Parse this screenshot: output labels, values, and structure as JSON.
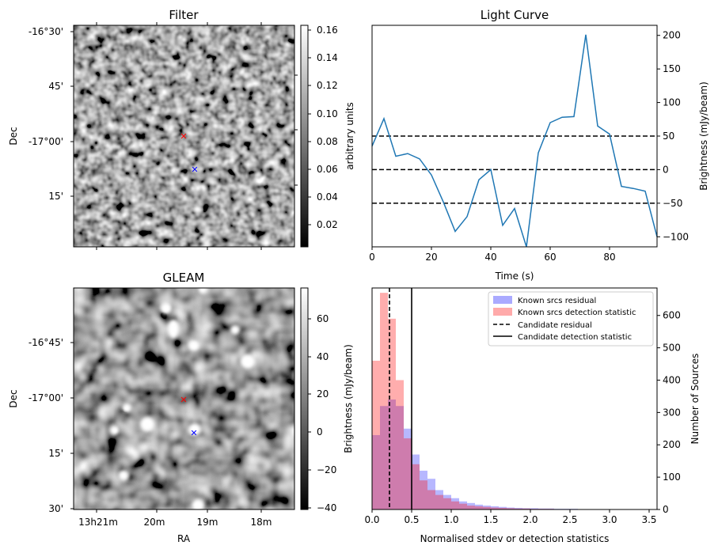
{
  "colors": {
    "line": "#1f77b4",
    "known_residual": "#aaaaff",
    "known_detection": "#ffaaaa",
    "overlap": "#c77bb5",
    "candidate_red_marker": "#ff0000",
    "candidate_blue_marker": "#0000ff"
  },
  "chart_data": [
    {
      "type": "heatmap",
      "panel": "filter",
      "title": "Filter",
      "xlabel": "",
      "ylabel": "Dec",
      "yticklabels": [
        "-16°30'",
        "45'",
        "-17°00'",
        "15'"
      ],
      "colorbar": {
        "label": "arbitrary units",
        "range": [
          0.005,
          0.163
        ],
        "ticks": [
          "0.02",
          "0.04",
          "0.06",
          "0.08",
          "0.10",
          "0.12",
          "0.14",
          "0.16"
        ]
      },
      "markers": [
        {
          "symbol": "x",
          "color": "red"
        },
        {
          "symbol": "x",
          "color": "blue"
        }
      ]
    },
    {
      "type": "line",
      "panel": "light-curve",
      "title": "Light Curve",
      "xlabel": "Time (s)",
      "ylabel": "Brightness (mJy/beam)",
      "xlim": [
        0,
        96
      ],
      "ylim": [
        -115,
        215
      ],
      "xticks": [
        0,
        20,
        40,
        60,
        80
      ],
      "yticks": [
        -100,
        -50,
        0,
        50,
        100,
        150,
        200
      ],
      "x": [
        0,
        4,
        8,
        12,
        16,
        20,
        24,
        28,
        32,
        36,
        40,
        44,
        48,
        52,
        56,
        60,
        64,
        68,
        72,
        76,
        80,
        84,
        88,
        92,
        96
      ],
      "y": [
        35,
        76,
        20,
        24,
        16,
        -8,
        -48,
        -92,
        -70,
        -15,
        0,
        -83,
        -58,
        -115,
        25,
        70,
        78,
        79,
        201,
        65,
        53,
        -25,
        -28,
        -32,
        -100
      ],
      "hlines": [
        {
          "y": 50,
          "style": "dashed"
        },
        {
          "y": 0,
          "style": "dashed"
        },
        {
          "y": -50,
          "style": "dashed"
        }
      ]
    },
    {
      "type": "heatmap",
      "panel": "gleam",
      "title": "GLEAM",
      "xlabel": "RA",
      "ylabel": "Dec",
      "yticklabels": [
        "-16°45'",
        "-17°00'",
        "15'",
        "30'"
      ],
      "xticklabels": [
        "13h21m",
        "20m",
        "19m",
        "18m"
      ],
      "colorbar": {
        "label": "Brightness (mJy/beam)",
        "range": [
          -42,
          75
        ],
        "ticks": [
          "−40",
          "−20",
          "0",
          "20",
          "40",
          "60"
        ]
      },
      "markers": [
        {
          "symbol": "x",
          "color": "red"
        },
        {
          "symbol": "x",
          "color": "blue"
        }
      ]
    },
    {
      "type": "bar",
      "panel": "histogram",
      "xlabel": "Normalised stdev or detection statistics",
      "ylabel": "Number of Sources",
      "xlim": [
        0,
        3.6
      ],
      "ylim": [
        0,
        685
      ],
      "xticks": [
        "0.0",
        "0.5",
        "1.0",
        "1.5",
        "2.0",
        "2.5",
        "3.0",
        "3.5"
      ],
      "yticks": [
        "0",
        "100",
        "200",
        "300",
        "400",
        "500",
        "600"
      ],
      "bin_width": 0.1,
      "bin_start": 0.0,
      "series": [
        {
          "name": "Known srcs residual",
          "values": [
            230,
            320,
            340,
            320,
            250,
            170,
            120,
            95,
            60,
            45,
            35,
            25,
            20,
            15,
            12,
            10,
            8,
            6,
            5,
            4,
            4,
            3,
            3,
            2,
            2,
            2,
            1,
            1,
            1,
            1,
            1,
            0,
            1,
            0,
            0,
            1
          ]
        },
        {
          "name": "Known srcs detection statistic",
          "values": [
            460,
            670,
            590,
            400,
            220,
            140,
            90,
            60,
            45,
            35,
            25,
            18,
            12,
            10,
            8,
            6,
            5,
            4,
            3,
            3,
            2,
            2,
            2,
            1,
            1,
            1,
            1,
            1,
            0,
            1,
            0,
            0,
            0,
            0,
            1,
            0
          ]
        }
      ],
      "vlines": [
        {
          "name": "Candidate residual",
          "x": 0.22,
          "style": "dashed"
        },
        {
          "name": "Candidate detection statistic",
          "x": 0.5,
          "style": "solid"
        }
      ],
      "legend": "top-right"
    }
  ]
}
